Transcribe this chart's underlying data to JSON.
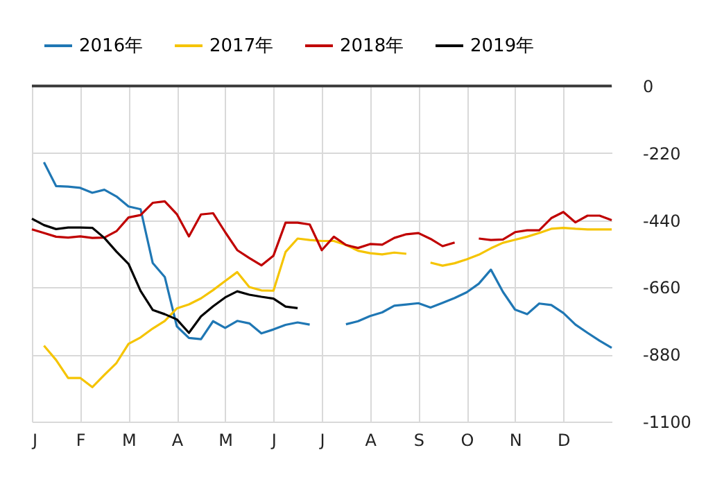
{
  "chart_data": {
    "type": "line",
    "categories": [
      "J",
      null,
      null,
      null,
      "F",
      null,
      null,
      null,
      "M",
      null,
      null,
      null,
      "A",
      null,
      null,
      null,
      "M",
      null,
      null,
      null,
      "J",
      null,
      null,
      null,
      "J",
      null,
      null,
      null,
      "A",
      null,
      null,
      null,
      "S",
      null,
      null,
      null,
      "O",
      null,
      null,
      null,
      "N",
      null,
      null,
      null,
      "D",
      null,
      null,
      null,
      null
    ],
    "ylim": [
      -1100,
      0
    ],
    "yticks": [
      0,
      -220,
      -440,
      -660,
      -880,
      -1100
    ],
    "grid": true,
    "legend": "top",
    "ref_lines": [
      {
        "axis": "y",
        "value": 0,
        "color": "#404040"
      }
    ],
    "series": [
      {
        "name": "2016年",
        "color": "#1f77b4",
        "values": [
          null,
          -250,
          -328,
          -330,
          -334,
          -350,
          -340,
          -362,
          -395,
          -404,
          -580,
          -626,
          -788,
          -826,
          -830,
          -771,
          -793,
          -770,
          -778,
          -811,
          -798,
          -783,
          -775,
          -782,
          null,
          null,
          -781,
          -771,
          -754,
          -742,
          -720,
          -716,
          -712,
          -726,
          -711,
          -695,
          -676,
          -648,
          -602,
          -675,
          -733,
          -748,
          -713,
          -718,
          -744,
          -782,
          -809,
          -835,
          -858
        ]
      },
      {
        "name": "2017年",
        "color": "#f5c400",
        "values": [
          null,
          -851,
          -898,
          -957,
          -957,
          -987,
          -947,
          -908,
          -845,
          -824,
          -795,
          -770,
          -729,
          -716,
          -696,
          -669,
          -639,
          -610,
          -659,
          -670,
          -671,
          -544,
          -500,
          -505,
          -508,
          -508,
          -521,
          -540,
          -548,
          -552,
          -546,
          -550,
          null,
          -579,
          -589,
          -581,
          -568,
          -553,
          -532,
          -514,
          -504,
          -494,
          -482,
          -468,
          -465,
          -468,
          -470,
          -470,
          -470
        ]
      },
      {
        "name": "2018年",
        "color": "#c00000",
        "values": [
          -470,
          -482,
          -494,
          -497,
          -493,
          -498,
          -497,
          -476,
          -431,
          -423,
          -383,
          -378,
          -420,
          -493,
          -421,
          -417,
          -479,
          -538,
          -564,
          -588,
          -556,
          -448,
          -448,
          -454,
          -538,
          -494,
          -521,
          -531,
          -518,
          -520,
          -498,
          -486,
          -482,
          -501,
          -525,
          -513,
          null,
          -500,
          -505,
          -503,
          -479,
          -473,
          -473,
          -433,
          -413,
          -447,
          -425,
          -425,
          -440
        ]
      },
      {
        "name": "2019年",
        "color": "#000000",
        "values": [
          -435,
          -456,
          -469,
          -464,
          -464,
          -465,
          -498,
          -543,
          -583,
          -672,
          -734,
          -748,
          -765,
          -809,
          -755,
          -722,
          -693,
          -673,
          -684,
          -691,
          -697,
          -723,
          -728,
          null,
          null,
          null,
          null,
          null,
          null,
          null,
          null,
          null,
          null,
          null,
          null,
          null,
          null,
          null,
          null,
          null,
          null,
          null,
          null,
          null,
          null,
          null,
          null,
          null,
          null
        ]
      }
    ]
  }
}
